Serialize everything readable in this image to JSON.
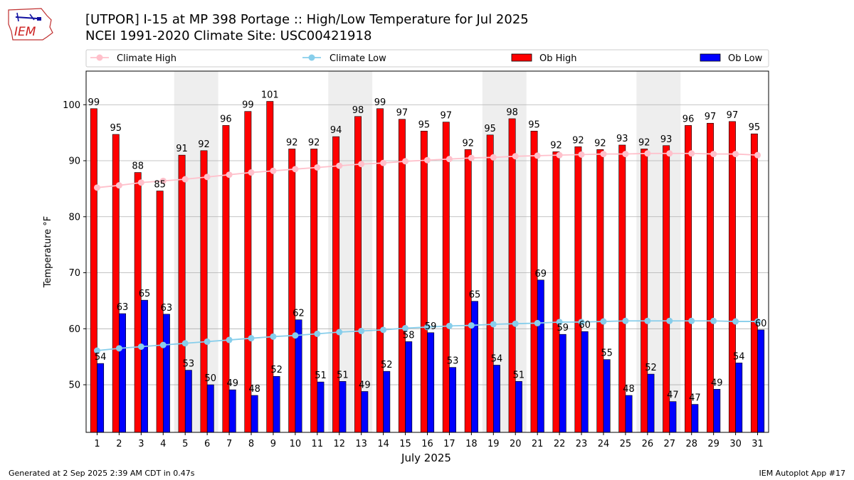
{
  "title_line1": "[UTPOR] I-15 at MP 398 Portage  :: High/Low Temperature for Jul 2025",
  "title_line2": "NCEI 1991-2020 Climate Site: USC00421918",
  "footer_left": "Generated at 2 Sep 2025 2:39 AM CDT in 0.47s",
  "footer_right": "IEM Autoplot App #17",
  "logo_text": "IEM",
  "colors": {
    "ob_high": "#ff0000",
    "ob_low": "#0000ff",
    "climate_high": "#ffc0cb",
    "climate_low": "#87ceeb",
    "weekend_shade": "#eeeeee",
    "grid": "#b0b0b0"
  },
  "legend": {
    "climate_high": "Climate High",
    "climate_low": "Climate Low",
    "ob_high": "Ob High",
    "ob_low": "Ob Low"
  },
  "chart_data": {
    "type": "bar",
    "title": "[UTPOR] I-15 at MP 398 Portage  :: High/Low Temperature for Jul 2025",
    "subtitle": "NCEI 1991-2020 Climate Site: USC00421918",
    "xlabel": "July 2025",
    "ylabel": "Temperature °F",
    "ylim": [
      41.5,
      106
    ],
    "yticks": [
      50,
      60,
      70,
      80,
      90,
      100
    ],
    "grid": true,
    "legend_position": "top",
    "categories": [
      "1",
      "2",
      "3",
      "4",
      "5",
      "6",
      "7",
      "8",
      "9",
      "10",
      "11",
      "12",
      "13",
      "14",
      "15",
      "16",
      "17",
      "18",
      "19",
      "20",
      "21",
      "22",
      "23",
      "24",
      "25",
      "26",
      "27",
      "28",
      "29",
      "30",
      "31"
    ],
    "shaded_days": [
      [
        5,
        6
      ],
      [
        12,
        13
      ],
      [
        19,
        20
      ],
      [
        26,
        27
      ]
    ],
    "series": [
      {
        "name": "Ob High",
        "kind": "bar",
        "values": [
          99,
          95,
          88,
          85,
          91,
          92,
          96,
          99,
          101,
          92,
          92,
          94,
          98,
          99,
          97,
          95,
          97,
          92,
          95,
          98,
          95,
          92,
          92,
          92,
          93,
          92,
          93,
          96,
          97,
          97,
          95
        ],
        "plotted": [
          99.3,
          94.7,
          87.9,
          84.6,
          91.0,
          91.8,
          96.3,
          98.8,
          100.6,
          92.1,
          92.1,
          94.3,
          97.9,
          99.3,
          97.4,
          95.3,
          96.9,
          92.0,
          94.6,
          97.5,
          95.3,
          91.6,
          92.5,
          92.0,
          92.8,
          92.1,
          92.7,
          96.3,
          96.7,
          97.0,
          94.8
        ],
        "labels": [
          "99",
          "95",
          "88",
          "85",
          "91",
          "92",
          "96",
          "99",
          "101",
          "92",
          "92",
          "94",
          "98",
          "99",
          "97",
          "95",
          "97",
          "92",
          "95",
          "98",
          "95",
          "92",
          "92",
          "92",
          "93",
          "92",
          "93",
          "96",
          "97",
          "97",
          "95"
        ]
      },
      {
        "name": "Ob Low",
        "kind": "bar",
        "values": [
          54,
          63,
          65,
          63,
          53,
          50,
          49,
          48,
          52,
          62,
          51,
          51,
          49,
          52,
          58,
          59,
          53,
          65,
          54,
          51,
          69,
          59,
          60,
          55,
          48,
          52,
          47,
          47,
          49,
          54,
          60
        ],
        "plotted": [
          53.8,
          62.7,
          65.1,
          62.6,
          52.6,
          50.0,
          49.1,
          48.1,
          51.5,
          61.6,
          50.5,
          50.6,
          48.8,
          52.4,
          57.7,
          59.3,
          53.1,
          64.9,
          53.5,
          50.6,
          68.7,
          59.0,
          59.5,
          54.5,
          48.1,
          51.9,
          47.0,
          46.5,
          49.2,
          53.9,
          59.8
        ],
        "labels": [
          "54",
          "63",
          "65",
          "63",
          "53",
          "50",
          "49",
          "48",
          "52",
          "62",
          "51",
          "51",
          "49",
          "52",
          "58",
          "59",
          "53",
          "65",
          "54",
          "51",
          "69",
          "59",
          "60",
          "55",
          "48",
          "52",
          "47",
          "47",
          "49",
          "54",
          "60"
        ]
      },
      {
        "name": "Climate High",
        "kind": "line",
        "values": [
          85.2,
          85.6,
          86.1,
          86.4,
          86.7,
          87.1,
          87.5,
          87.9,
          88.2,
          88.5,
          88.8,
          89.1,
          89.4,
          89.6,
          89.9,
          90.1,
          90.3,
          90.5,
          90.6,
          90.8,
          90.9,
          91.0,
          91.1,
          91.2,
          91.2,
          91.3,
          91.3,
          91.3,
          91.2,
          91.2,
          91.0
        ]
      },
      {
        "name": "Climate Low",
        "kind": "line",
        "values": [
          56.1,
          56.5,
          56.8,
          57.1,
          57.4,
          57.7,
          58.0,
          58.3,
          58.6,
          58.8,
          59.1,
          59.4,
          59.6,
          59.8,
          60.1,
          60.3,
          60.5,
          60.6,
          60.8,
          60.9,
          61.0,
          61.2,
          61.2,
          61.3,
          61.4,
          61.4,
          61.4,
          61.4,
          61.4,
          61.3,
          61.3
        ]
      }
    ]
  }
}
